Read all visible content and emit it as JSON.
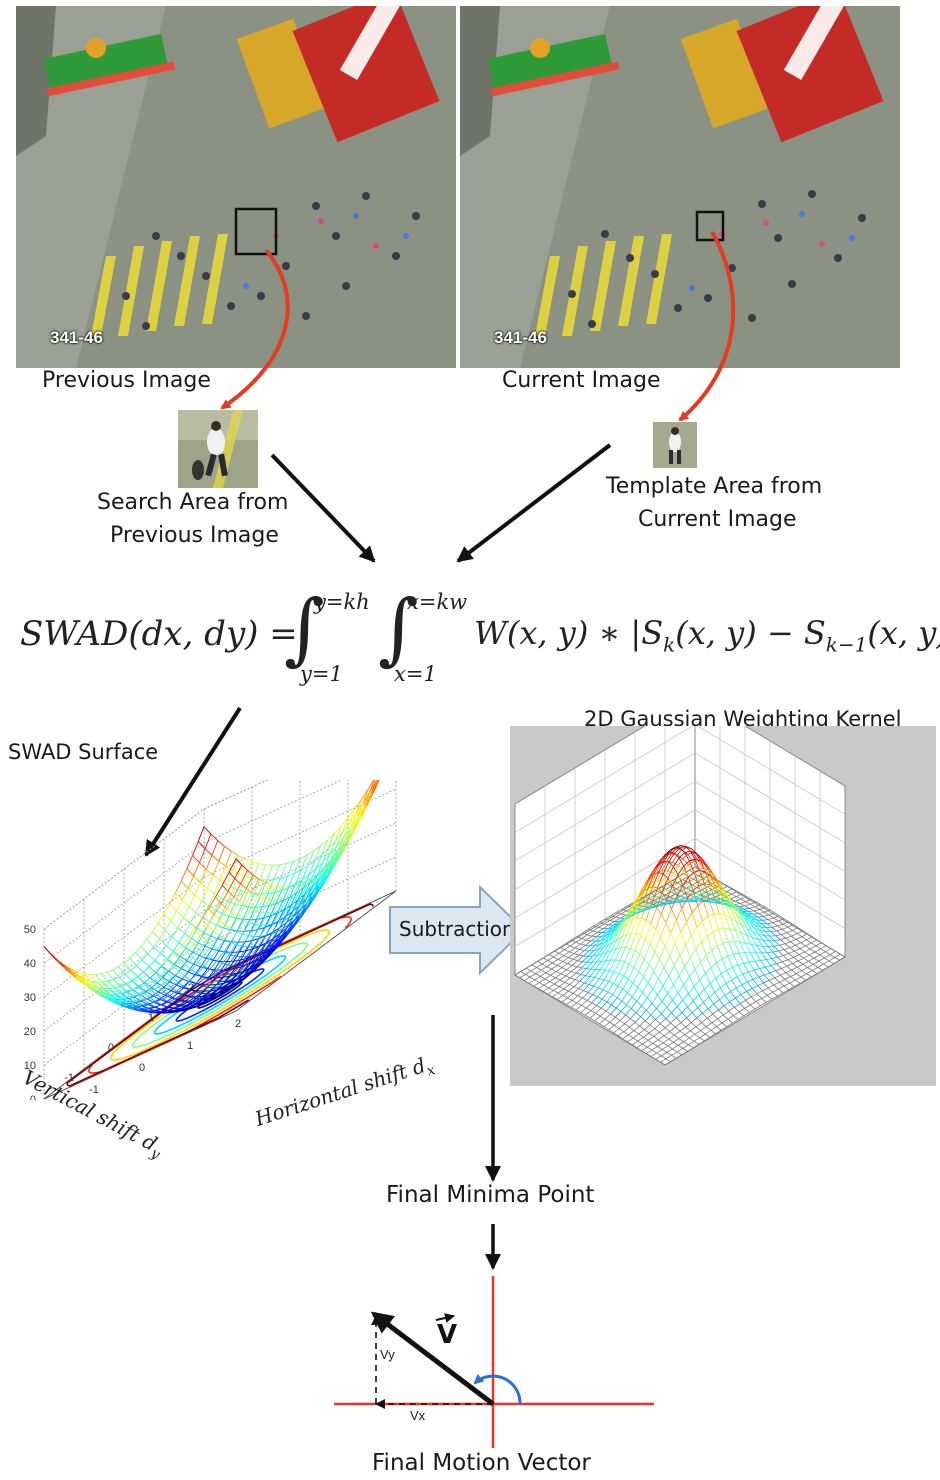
{
  "images": {
    "previous": {
      "caption": "Previous Image",
      "frame_id": "341-46"
    },
    "current": {
      "caption": "Current Image",
      "frame_id": "341-46"
    }
  },
  "patches": {
    "search": {
      "caption_line1": "Search Area from",
      "caption_line2": "Previous Image"
    },
    "template": {
      "caption_line1": "Template Area from",
      "caption_line2": "Current Image"
    }
  },
  "equation": {
    "lhs": "SWAD(dx, dy) =",
    "y_upper": "y=kh",
    "y_lower": "y=1",
    "x_upper": "x=kw",
    "x_lower": "x=1",
    "integrand": "W(x, y) ∗ |S",
    "sub_k": "k",
    "mid": "(x, y) − S",
    "sub_k1": "k−1",
    "tail": "(x, y)|"
  },
  "swad_plot": {
    "title": "SWAD Surface",
    "z_ticks": [
      "50",
      "40",
      "30",
      "20",
      "10",
      "0"
    ],
    "left_ticks": [
      "2",
      "1",
      "0",
      "-1",
      "-2"
    ],
    "right_ticks": [
      "-2",
      "-1",
      "0",
      "1",
      "2"
    ],
    "ylabel": "Vertical shift d",
    "ylabel_sub": "y",
    "xlabel": "Horizontal shift d",
    "xlabel_sub": "x"
  },
  "gaussian_plot": {
    "title": "2D Gaussian Weighting Kernel"
  },
  "operation": {
    "label": "Subtraction"
  },
  "flow": {
    "minima": "Final Minima Point",
    "motion": "Final Motion Vector"
  },
  "vector": {
    "name": "V",
    "vx_label": "Vx",
    "vy_label": "Vy"
  },
  "colors": {
    "red_arrow": "#e33b24",
    "axis_red": "#ee3322",
    "angle_arc": "#2b6fd6",
    "block_arrow": "#dbe7f3"
  }
}
